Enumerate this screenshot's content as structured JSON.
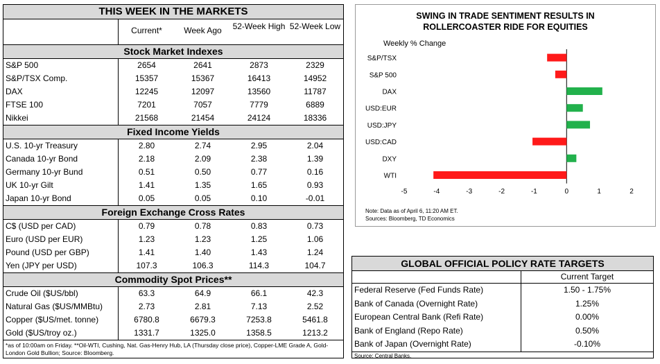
{
  "markets": {
    "title": "THIS WEEK IN THE MARKETS",
    "columns": [
      "Current*",
      "Week Ago",
      "52-Week High",
      "52-Week Low"
    ],
    "sections": [
      {
        "title": "Stock Market Indexes",
        "rows": [
          [
            "S&P 500",
            "2654",
            "2641",
            "2873",
            "2329"
          ],
          [
            "S&P/TSX Comp.",
            "15357",
            "15367",
            "16413",
            "14952"
          ],
          [
            "DAX",
            "12245",
            "12097",
            "13560",
            "11787"
          ],
          [
            "FTSE 100",
            "7201",
            "7057",
            "7779",
            "6889"
          ],
          [
            "Nikkei",
            "21568",
            "21454",
            "24124",
            "18336"
          ]
        ]
      },
      {
        "title": "Fixed Income Yields",
        "rows": [
          [
            "U.S. 10-yr Treasury",
            "2.80",
            "2.74",
            "2.95",
            "2.04"
          ],
          [
            "Canada 10-yr Bond",
            "2.18",
            "2.09",
            "2.38",
            "1.39"
          ],
          [
            "Germany 10-yr Bund",
            "0.51",
            "0.50",
            "0.77",
            "0.16"
          ],
          [
            "UK 10-yr Gilt",
            "1.41",
            "1.35",
            "1.65",
            "0.93"
          ],
          [
            "Japan 10-yr Bond",
            "0.05",
            "0.05",
            "0.10",
            "-0.01"
          ]
        ]
      },
      {
        "title": "Foreign Exchange Cross Rates",
        "rows": [
          [
            "C$ (USD per CAD)",
            "0.79",
            "0.78",
            "0.83",
            "0.73"
          ],
          [
            "Euro (USD per EUR)",
            "1.23",
            "1.23",
            "1.25",
            "1.06"
          ],
          [
            "Pound (USD per GBP)",
            "1.41",
            "1.40",
            "1.43",
            "1.24"
          ],
          [
            "Yen (JPY per USD)",
            "107.3",
            "106.3",
            "114.3",
            "104.7"
          ]
        ]
      },
      {
        "title": "Commodity Spot Prices**",
        "rows": [
          [
            "Crude Oil ($US/bbl)",
            "63.3",
            "64.9",
            "66.1",
            "42.3"
          ],
          [
            "Natural Gas ($US/MMBtu)",
            "2.73",
            "2.81",
            "7.13",
            "2.52"
          ],
          [
            "Copper ($US/met. tonne)",
            "6780.8",
            "6679.3",
            "7253.8",
            "5461.8"
          ],
          [
            "Gold ($US/troy oz.)",
            "1331.7",
            "1325.0",
            "1358.5",
            "1213.2"
          ]
        ]
      }
    ],
    "footnote": "*as of 10:00am on Friday. **Oil-WTI, Cushing, Nat. Gas-Henry Hub, LA (Thursday close price), Copper-LME Grade A, Gold-London Gold Bullion; Source: Bloomberg."
  },
  "chart_data": {
    "type": "bar",
    "title": "SWING IN TRADE SENTIMENT RESULTS IN ROLLERCOASTER RIDE FOR EQUITIES",
    "subtitle": "Weekly % Change",
    "categories": [
      "S&P/TSX",
      "S&P 500",
      "DAX",
      "USD:EUR",
      "USD:JPY",
      "USD:CAD",
      "DXY",
      "WTI"
    ],
    "values": [
      -0.6,
      -0.35,
      1.1,
      0.5,
      0.72,
      -1.05,
      0.3,
      -4.1
    ],
    "xlim": [
      -5,
      2
    ],
    "xticks": [
      "-5",
      "-4",
      "-3",
      "-2",
      "-1",
      "0",
      "1",
      "2"
    ],
    "colors": {
      "positive": "#22b14c",
      "negative": "#ff1a1a"
    },
    "note": "Note: Data as of April 6, 11:20 AM ET.",
    "source": "Sources: Bloomberg, TD Economics"
  },
  "policy": {
    "title": "GLOBAL OFFICIAL POLICY RATE TARGETS",
    "column": "Current Target",
    "rows": [
      [
        "Federal Reserve (Fed Funds Rate)",
        "1.50 - 1.75%"
      ],
      [
        "Bank of Canada (Overnight Rate)",
        "1.25%"
      ],
      [
        "European Central Bank (Refi Rate)",
        "0.00%"
      ],
      [
        "Bank of England (Repo Rate)",
        "0.50%"
      ],
      [
        "Bank of Japan (Overnight Rate)",
        "-0.10%"
      ]
    ],
    "source": "Source: Central Banks."
  }
}
